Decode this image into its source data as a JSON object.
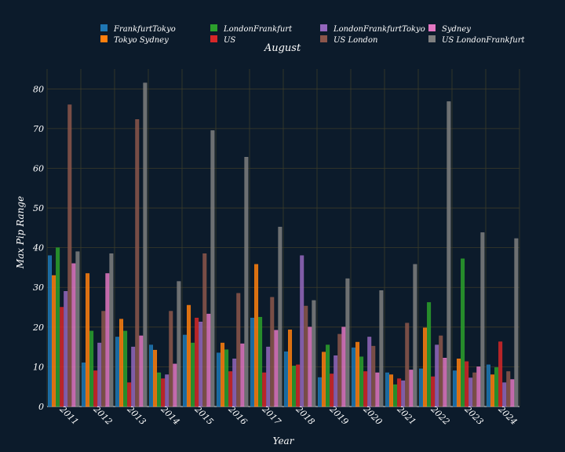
{
  "chart_data": {
    "type": "bar",
    "title": "August",
    "xlabel": "Year",
    "ylabel": "Max Pip Range",
    "ylim": [
      0,
      85
    ],
    "yticks": [
      0,
      10,
      20,
      30,
      40,
      50,
      60,
      70,
      80
    ],
    "grid": true,
    "legend_position": "top",
    "categories": [
      "2011",
      "2012",
      "2013",
      "2014",
      "2015",
      "2016",
      "2017",
      "2018",
      "2019",
      "2020",
      "2021",
      "2022",
      "2023",
      "2024"
    ],
    "series": [
      {
        "name": "FrankfurtTokyo",
        "color": "#1f77b4",
        "values": [
          38,
          11,
          17.5,
          15.5,
          18,
          13.5,
          22.3,
          13.8,
          7.3,
          14.8,
          8.5,
          9.5,
          9,
          10.5
        ]
      },
      {
        "name": "Tokyo Sydney",
        "color": "#ff7f0e",
        "values": [
          33,
          33.5,
          22,
          14.2,
          25.5,
          16,
          35.8,
          19.3,
          13.7,
          16.2,
          8,
          19.8,
          12,
          8
        ]
      },
      {
        "name": "LondonFrankfurt",
        "color": "#2ca02c",
        "values": [
          40,
          19,
          19,
          8.5,
          16,
          14.3,
          22.5,
          10.2,
          15.5,
          12.5,
          5.5,
          26.2,
          37.2,
          9.8
        ]
      },
      {
        "name": "US",
        "color": "#d62728",
        "values": [
          25,
          9,
          6,
          7,
          22.3,
          8.8,
          8.5,
          10.5,
          8.2,
          8.8,
          7,
          7.5,
          11.3,
          16.3
        ]
      },
      {
        "name": "LondonFrankfurtTokyo",
        "color": "#9467bd",
        "values": [
          29,
          16,
          15,
          8,
          21.3,
          12,
          15,
          38,
          12.8,
          17.5,
          6.5,
          15.5,
          7.2,
          6
        ]
      },
      {
        "name": "US London",
        "color": "#8c564b",
        "values": [
          76,
          24,
          72.3,
          24,
          38.5,
          28.5,
          27.5,
          25.3,
          18.2,
          15.2,
          21,
          17.8,
          8.5,
          8.8
        ]
      },
      {
        "name": "Sydney",
        "color": "#e377c2",
        "values": [
          36,
          33.5,
          17.8,
          10.7,
          23.3,
          15.8,
          19.2,
          20,
          20,
          8.5,
          9.2,
          12.2,
          10,
          6.8
        ]
      },
      {
        "name": "US LondonFrankfurt",
        "color": "#7f7f7f",
        "values": [
          39,
          38.5,
          81.5,
          31.5,
          69.5,
          62.8,
          45.2,
          26.7,
          32.2,
          29.2,
          35.8,
          76.8,
          43.8,
          42.3
        ]
      }
    ],
    "legend_layout": [
      [
        "FrankfurtTokyo",
        "LondonFrankfurt",
        "LondonFrankfurtTokyo",
        "Sydney"
      ],
      [
        "Tokyo Sydney",
        "US",
        "US London",
        "US LondonFrankfurt"
      ]
    ]
  }
}
